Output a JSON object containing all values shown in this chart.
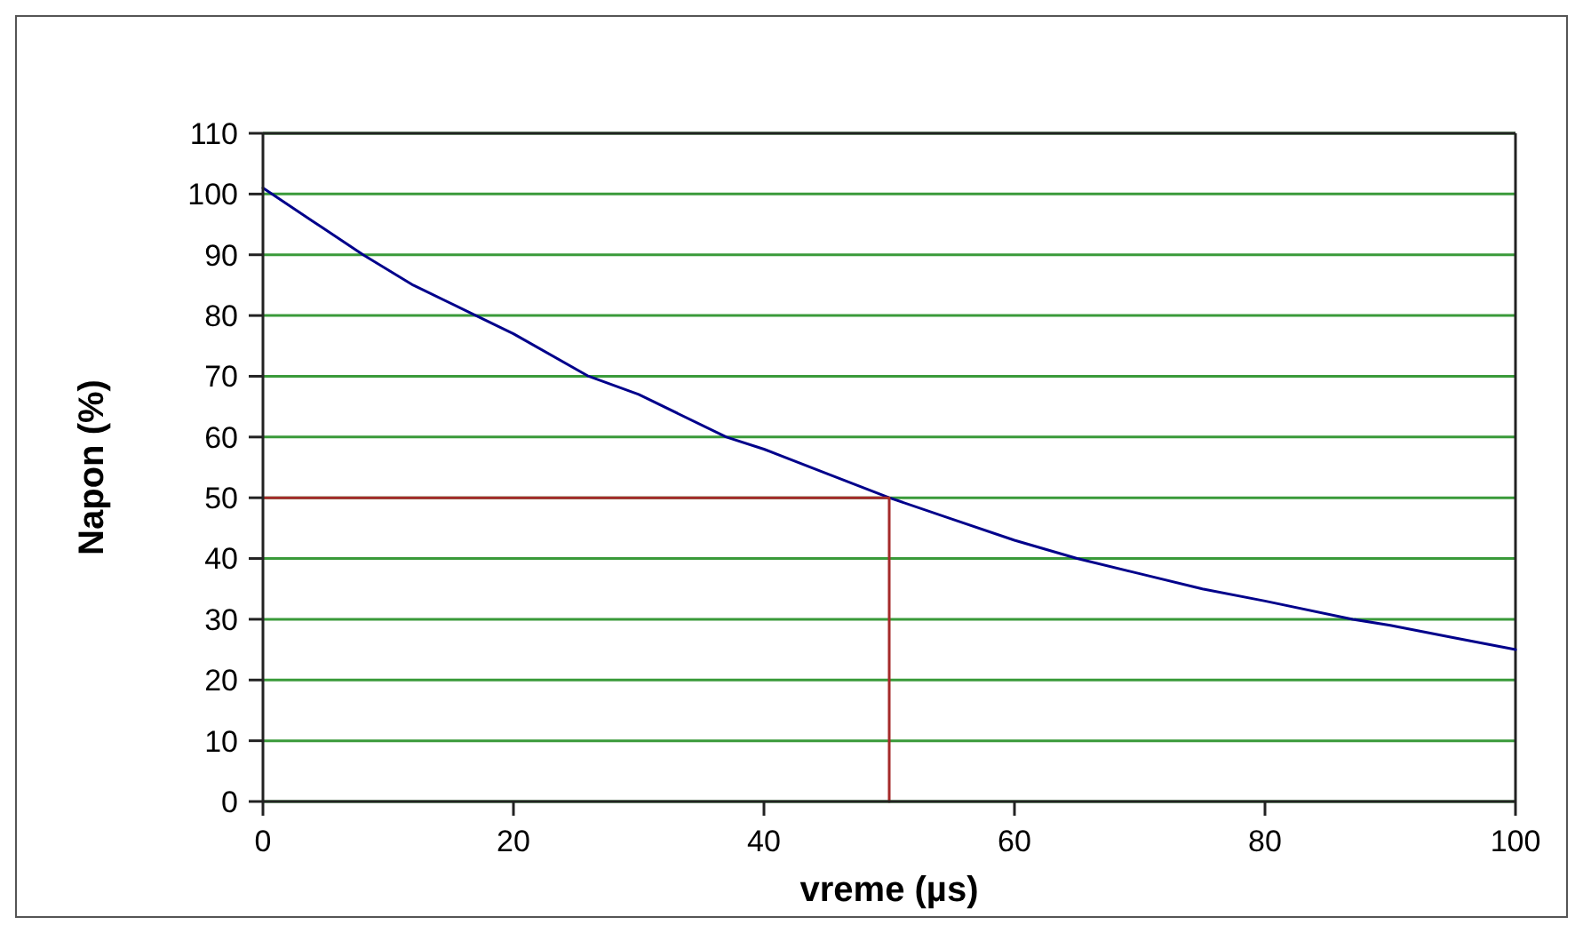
{
  "chart_data": {
    "type": "line",
    "xlabel": "vreme (µs)",
    "ylabel": "Napon (%)",
    "xlim": [
      0,
      100
    ],
    "xticks": [
      0,
      20,
      40,
      60,
      80,
      100
    ],
    "ylim": [
      0,
      110
    ],
    "yticks": [
      0,
      10,
      20,
      30,
      40,
      50,
      60,
      70,
      80,
      90,
      100,
      110
    ],
    "grid": "y",
    "marker": "none",
    "line_style": "solid",
    "series": [
      {
        "color": "#00008b",
        "x": [
          0,
          4,
          8,
          12,
          17,
          20,
          26,
          30,
          37,
          40,
          45,
          50,
          55,
          60,
          65,
          70,
          75,
          80,
          87,
          90,
          95,
          100
        ],
        "values": [
          101,
          95.5,
          90,
          85,
          80,
          77,
          70,
          67,
          60,
          58,
          54,
          50,
          46.5,
          43,
          40,
          37.5,
          35,
          33,
          30,
          29,
          27,
          25
        ]
      },
      {
        "color": "#a52a2a",
        "x": [
          0,
          50,
          50
        ],
        "values": [
          50,
          50,
          0
        ]
      }
    ]
  }
}
